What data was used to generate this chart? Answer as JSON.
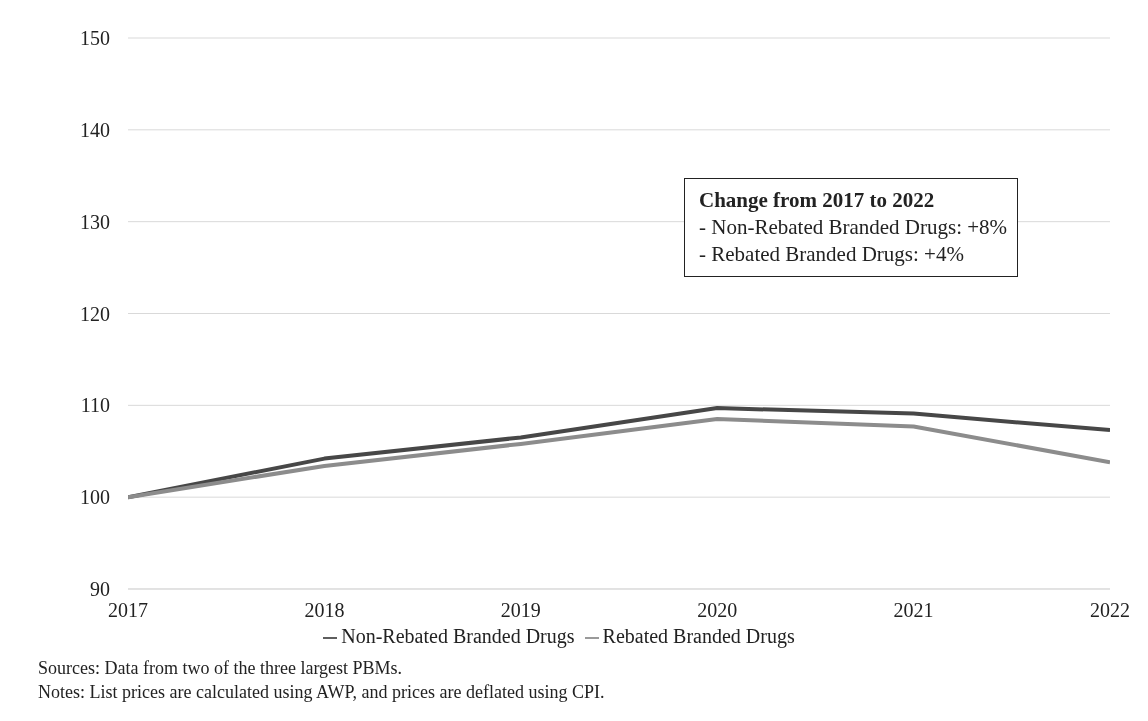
{
  "chart_data": {
    "type": "line",
    "x": [
      2017,
      2018,
      2019,
      2020,
      2021,
      2022
    ],
    "xlim": [
      2017,
      2022
    ],
    "xticks": [
      2017,
      2018,
      2019,
      2020,
      2021,
      2022
    ],
    "ylim": [
      90,
      150
    ],
    "yticks": [
      90,
      100,
      110,
      120,
      130,
      140,
      150
    ],
    "grid": "y",
    "legend": "bottom",
    "marker": "none",
    "line_style": "solid",
    "series": [
      {
        "name": "Non-Rebated Branded Drugs",
        "color": "#474747",
        "values": [
          100,
          104.2,
          106.5,
          109.7,
          109.1,
          107.3
        ]
      },
      {
        "name": "Rebated Branded Drugs",
        "color": "#8c8c8c",
        "values": [
          100,
          103.4,
          105.8,
          108.5,
          107.7,
          103.8
        ]
      }
    ],
    "annotations": [
      "Change from 2017 to 2022",
      "- Non-Rebated Branded Drugs: +8%",
      "- Rebated Branded Drugs: +4%",
      "Sources: Data from two of the three largest PBMs.",
      "Notes: List prices are calculated using AWP, and prices are deflated using CPI."
    ]
  }
}
